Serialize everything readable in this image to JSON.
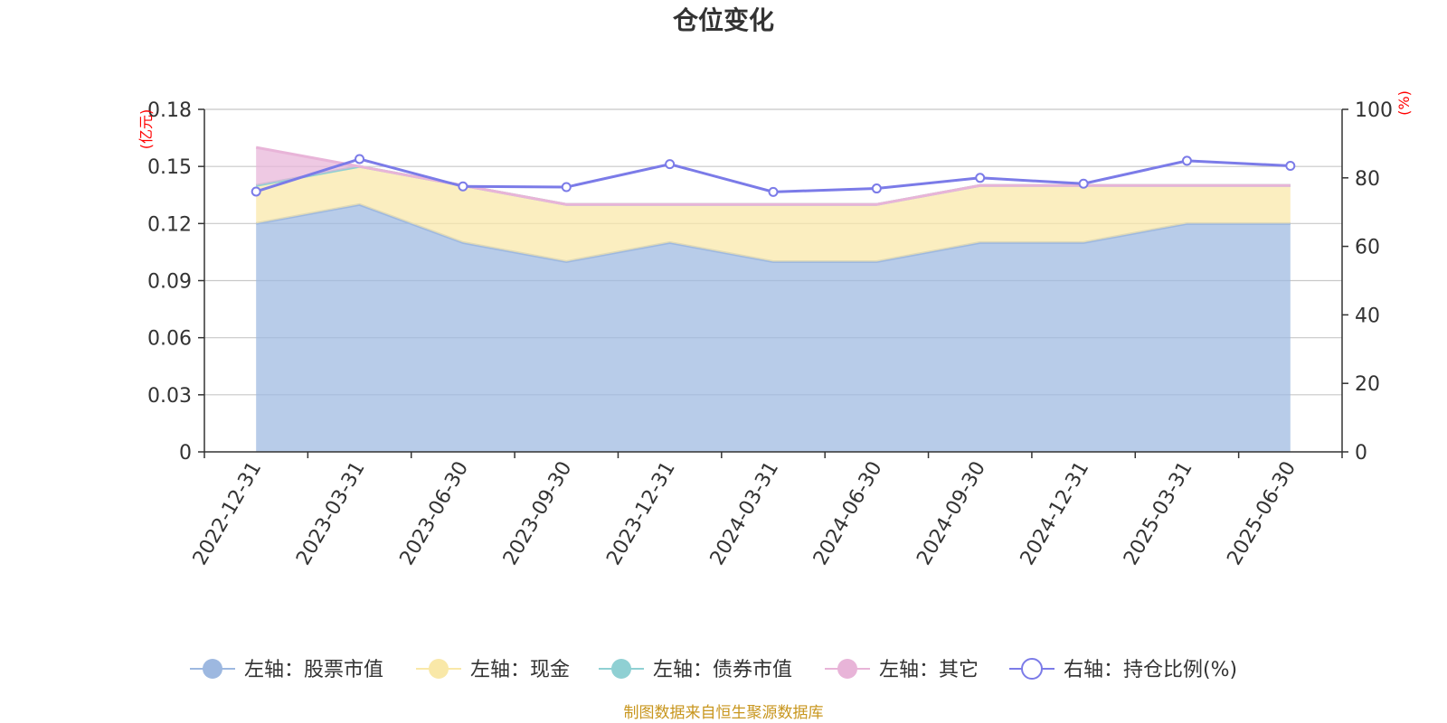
{
  "chart_data": {
    "type": "area",
    "title": "仓位变化",
    "source_note": "制图数据来自恒生聚源数据库",
    "categories": [
      "2022-12-31",
      "2023-03-31",
      "2023-06-30",
      "2023-09-30",
      "2023-12-31",
      "2024-03-31",
      "2024-06-30",
      "2024-09-30",
      "2024-12-31",
      "2025-03-31",
      "2025-06-30"
    ],
    "left_axis": {
      "unit": "(亿元)",
      "ylim": [
        0,
        0.18
      ],
      "ticks": [
        "0",
        "0.03",
        "0.06",
        "0.09",
        "0.12",
        "0.15",
        "0.18"
      ],
      "tick_values": [
        0,
        0.03,
        0.06,
        0.09,
        0.12,
        0.15,
        0.18
      ]
    },
    "right_axis": {
      "unit": "(%)",
      "ylim": [
        0,
        100
      ],
      "ticks": [
        "0",
        "20",
        "40",
        "60",
        "80",
        "100"
      ],
      "tick_values": [
        0,
        20,
        40,
        60,
        80,
        100
      ]
    },
    "series": [
      {
        "name": "左轴：股票市值",
        "axis": "left",
        "stack": true,
        "color": "#9db8e0",
        "values": [
          0.12,
          0.13,
          0.11,
          0.1,
          0.11,
          0.1,
          0.1,
          0.11,
          0.11,
          0.12,
          0.12
        ]
      },
      {
        "name": "左轴：现金",
        "axis": "left",
        "stack": true,
        "color": "#f9e8a8",
        "values": [
          0.02,
          0.02,
          0.03,
          0.03,
          0.02,
          0.03,
          0.03,
          0.03,
          0.03,
          0.02,
          0.02
        ]
      },
      {
        "name": "左轴：债券市值",
        "axis": "left",
        "stack": true,
        "color": "#8fd0d3",
        "values": [
          0,
          0,
          0,
          0,
          0,
          0,
          0,
          0,
          0,
          0,
          0
        ]
      },
      {
        "name": "左轴：其它",
        "axis": "left",
        "stack": true,
        "color": "#e8b4d8",
        "values": [
          0.02,
          0.0,
          0.0,
          0.0,
          0.0,
          0.0,
          0.0,
          0.0,
          0.0,
          0.0,
          0.0
        ]
      },
      {
        "name": "右轴：持仓比例(%)",
        "axis": "right",
        "stack": false,
        "color": "#7b7be8",
        "values": [
          76,
          85.5,
          77.5,
          77.3,
          84,
          75.9,
          76.9,
          80,
          78.3,
          85,
          83.5
        ]
      }
    ],
    "grid": true,
    "legend_position": "bottom"
  }
}
